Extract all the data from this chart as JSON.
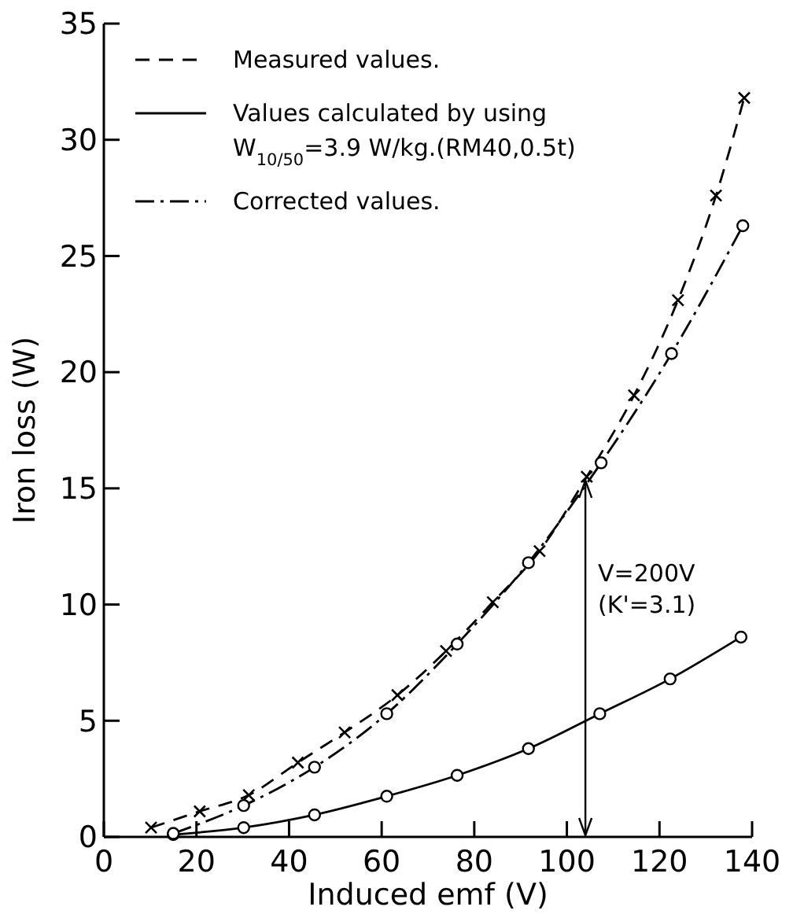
{
  "chart_data": {
    "type": "line",
    "xlabel": "Induced emf (V)",
    "ylabel": "Iron loss (W)",
    "xlim": [
      0,
      140
    ],
    "ylim": [
      0,
      35
    ],
    "xticks": [
      0,
      20,
      40,
      60,
      80,
      100,
      120,
      140
    ],
    "yticks": [
      0,
      5,
      10,
      15,
      20,
      25,
      30,
      35
    ],
    "grid": false,
    "legend": "top left",
    "series": [
      {
        "name": "Measured values.",
        "color": "#000000",
        "marker": "cross",
        "line_style": "dashed",
        "x": [
          10.2,
          20.7,
          31.3,
          41.9,
          52,
          63.4,
          73.9,
          84,
          94.1,
          104.3,
          114.5,
          124,
          132.2,
          138.3
        ],
        "values": [
          0.4,
          1.1,
          1.8,
          3.2,
          4.5,
          6.1,
          8,
          10.1,
          12.3,
          15.5,
          19,
          23.1,
          27.6,
          31.8
        ]
      },
      {
        "name": "Values calculated by using W$_{10/50}$=3.9 W/kg.(RM40,0.5t)",
        "color": "#000000",
        "marker": "circle",
        "line_style": "solid",
        "x": [
          15,
          30.2,
          45.5,
          61.1,
          76.3,
          91.7,
          107.1,
          122.3,
          137.6
        ],
        "values": [
          0.1,
          0.4,
          0.95,
          1.75,
          2.65,
          3.8,
          5.3,
          6.8,
          8.6
        ]
      },
      {
        "name": "Corrected values.",
        "color": "#000000",
        "marker": "circle",
        "line_style": "dashdot",
        "x": [
          15,
          30.2,
          45.5,
          61.1,
          76.3,
          91.7,
          107.4,
          122.6,
          138
        ],
        "values": [
          0.15,
          1.35,
          3,
          5.3,
          8.3,
          11.8,
          16.1,
          20.8,
          26.3
        ]
      }
    ],
    "ref_lines": [
      {
        "axis": "x",
        "value": 104,
        "color": "#000000",
        "line_style": "solid"
      }
    ],
    "annotations": [
      "V=200V",
      "(K'=3.1)"
    ]
  }
}
